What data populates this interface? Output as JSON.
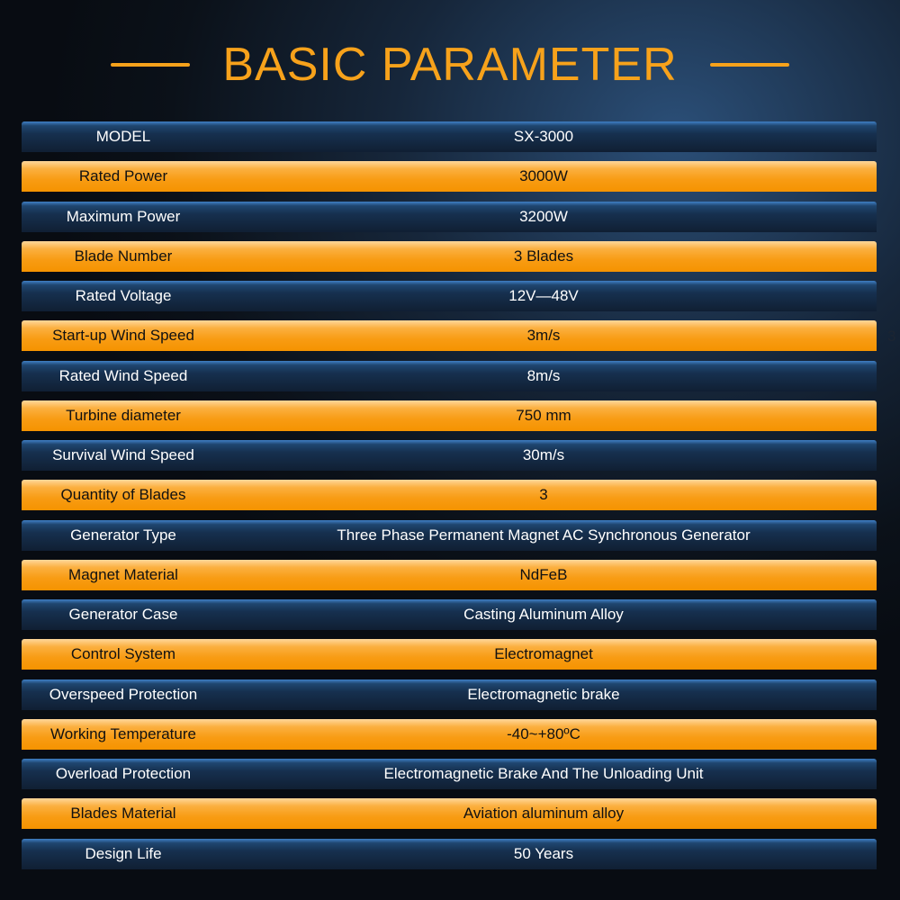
{
  "title": "BASIC PARAMETER",
  "rows": [
    {
      "label": "MODEL",
      "value": "SX-3000"
    },
    {
      "label": "Rated Power",
      "value": "3000W"
    },
    {
      "label": "Maximum Power",
      "value": "3200W"
    },
    {
      "label": "Blade Number",
      "value": "3 Blades"
    },
    {
      "label": "Rated Voltage",
      "value": "12V—48V"
    },
    {
      "label": "Start-up Wind Speed",
      "value": "3m/s"
    },
    {
      "label": "Rated Wind Speed",
      "value": "8m/s"
    },
    {
      "label": "Turbine diameter",
      "value": "750 mm"
    },
    {
      "label": "Survival Wind Speed",
      "value": "30m/s"
    },
    {
      "label": "Quantity of Blades",
      "value": "3"
    },
    {
      "label": "Generator Type",
      "value": "Three Phase Permanent Magnet AC Synchronous Generator"
    },
    {
      "label": "Magnet Material",
      "value": "NdFeB"
    },
    {
      "label": "Generator Case",
      "value": "Casting Aluminum Alloy"
    },
    {
      "label": "Control System",
      "value": "Electromagnet"
    },
    {
      "label": "Overspeed Protection",
      "value": "Electromagnetic brake"
    },
    {
      "label": "Working Temperature",
      "value": "-40~+80ºC"
    },
    {
      "label": "Overload Protection",
      "value": "Electromagnetic Brake And The Unloading Unit"
    },
    {
      "label": "Blades Material",
      "value": "Aviation aluminum alloy"
    },
    {
      "label": "Design Life",
      "value": "50 Years"
    }
  ],
  "stray_text": "3",
  "colors": {
    "accent": "#f7a21b",
    "orange_row": "#f89c14",
    "blue_row": "#16304f"
  }
}
